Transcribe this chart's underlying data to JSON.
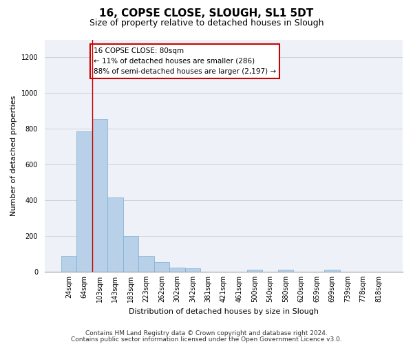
{
  "title": "16, COPSE CLOSE, SLOUGH, SL1 5DT",
  "subtitle": "Size of property relative to detached houses in Slough",
  "xlabel": "Distribution of detached houses by size in Slough",
  "ylabel": "Number of detached properties",
  "categories": [
    "24sqm",
    "64sqm",
    "103sqm",
    "143sqm",
    "183sqm",
    "223sqm",
    "262sqm",
    "302sqm",
    "342sqm",
    "381sqm",
    "421sqm",
    "461sqm",
    "500sqm",
    "540sqm",
    "580sqm",
    "620sqm",
    "659sqm",
    "699sqm",
    "739sqm",
    "778sqm",
    "818sqm"
  ],
  "values": [
    90,
    785,
    855,
    415,
    200,
    88,
    52,
    22,
    18,
    0,
    0,
    0,
    12,
    0,
    12,
    0,
    0,
    12,
    0,
    0,
    0
  ],
  "bar_color": "#b8d0e8",
  "bar_edge_color": "#7aafd4",
  "grid_color": "#cccccc",
  "vline_x": 1.5,
  "vline_color": "#cc0000",
  "annotation_text": "16 COPSE CLOSE: 80sqm\n← 11% of detached houses are smaller (286)\n88% of semi-detached houses are larger (2,197) →",
  "annotation_box_color": "#ffffff",
  "annotation_box_edge_color": "#cc0000",
  "footer_line1": "Contains HM Land Registry data © Crown copyright and database right 2024.",
  "footer_line2": "Contains public sector information licensed under the Open Government Licence v3.0.",
  "ylim": [
    0,
    1300
  ],
  "yticks": [
    0,
    200,
    400,
    600,
    800,
    1000,
    1200
  ],
  "bg_color": "#eef2f8",
  "fig_bg_color": "#ffffff",
  "title_fontsize": 11,
  "subtitle_fontsize": 9,
  "axis_label_fontsize": 8,
  "tick_fontsize": 7,
  "annotation_fontsize": 7.5,
  "footer_fontsize": 6.5,
  "ylabel_fontsize": 8
}
